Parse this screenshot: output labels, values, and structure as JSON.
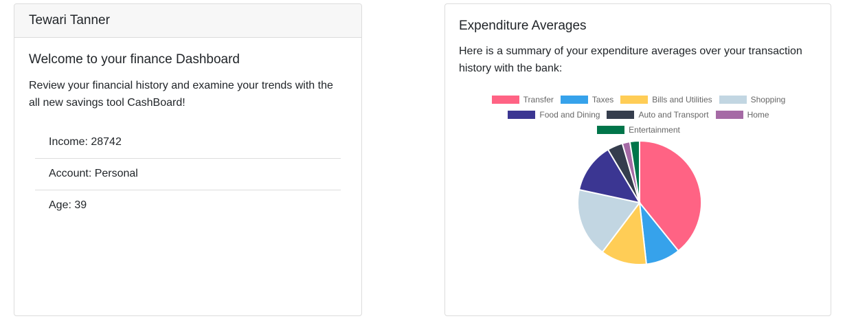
{
  "profile": {
    "name": "Tewari Tanner",
    "welcome_title": "Welcome to your finance Dashboard",
    "welcome_text": "Review your financial history and examine your trends with the all new savings tool CashBoard!",
    "details": [
      "Income: 28742",
      "Account: Personal",
      "Age: 39"
    ]
  },
  "expenditure": {
    "title": "Expenditure Averages",
    "description": "Here is a summary of your expenditure averages over your transaction history with the bank:"
  },
  "chart_data": {
    "type": "pie",
    "title": "",
    "legend_position": "top",
    "categories": [
      "Transfer",
      "Taxes",
      "Bills and Utilities",
      "Shopping",
      "Food and Dining",
      "Auto and Transport",
      "Home",
      "Entertainment"
    ],
    "values": [
      39,
      9,
      12,
      18,
      13,
      4,
      2,
      2.5
    ],
    "colors": [
      "#ff6384",
      "#36a2eb",
      "#ffcd56",
      "#c2d6e2",
      "#3b3692",
      "#353d4d",
      "#a56aa5",
      "#00754a"
    ]
  }
}
